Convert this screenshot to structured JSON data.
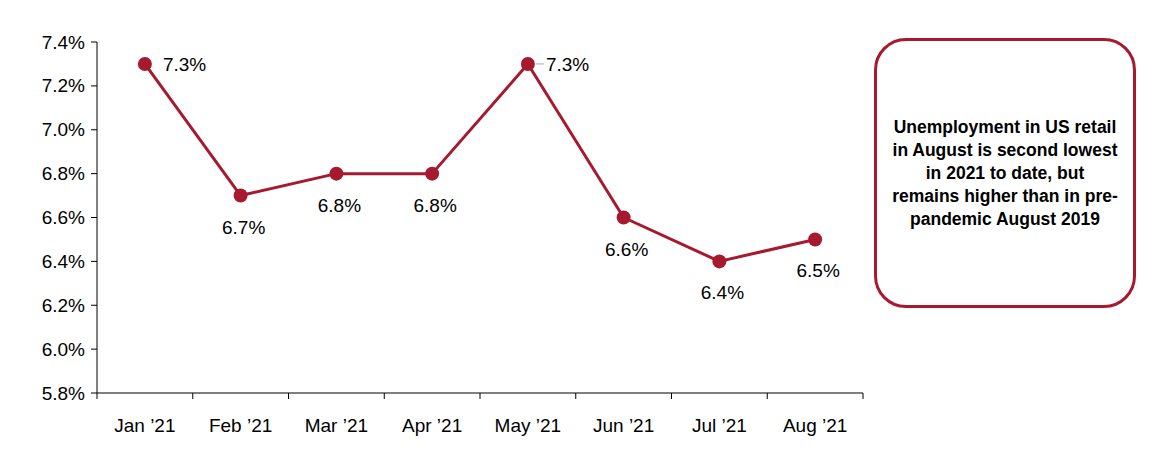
{
  "chart_data": {
    "type": "line",
    "categories": [
      "Jan ’21",
      "Feb ’21",
      "Mar ’21",
      "Apr ’21",
      "May ’21",
      "Jun ’21",
      "Jul ’21",
      "Aug ’21"
    ],
    "values": [
      7.3,
      6.7,
      6.8,
      6.8,
      7.3,
      6.6,
      6.4,
      6.5
    ],
    "value_labels": [
      "7.3%",
      "6.7%",
      "6.8%",
      "6.8%",
      "7.3%",
      "6.6%",
      "6.4%",
      "6.5%"
    ],
    "color": "#a6192e",
    "marker": "circle",
    "line_style": "solid",
    "data_labels": true,
    "grid": false,
    "ylim": [
      5.8,
      7.4
    ],
    "yticks": [
      {
        "value": 5.8,
        "label": "5.8%"
      },
      {
        "value": 6.0,
        "label": "6.0%"
      },
      {
        "value": 6.2,
        "label": "6.2%"
      },
      {
        "value": 6.4,
        "label": "6.4%"
      },
      {
        "value": 6.6,
        "label": "6.6%"
      },
      {
        "value": 6.8,
        "label": "6.8%"
      },
      {
        "value": 7.0,
        "label": "7.0%"
      },
      {
        "value": 7.2,
        "label": "7.2%"
      },
      {
        "value": 7.4,
        "label": "7.4%"
      }
    ],
    "annotation": "Unemployment in US retail in August is second lowest in 2021 to date, but remains higher than in pre-pandemic August 2019"
  }
}
